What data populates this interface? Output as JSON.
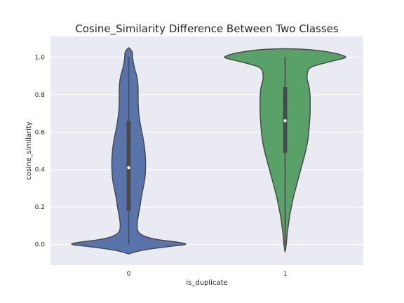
{
  "chart_data": {
    "type": "violin",
    "title": "Cosine_Similarity Difference Between Two Classes",
    "xlabel": "is_duplicate",
    "ylabel": "cosine_similarity",
    "ylim": [
      -0.11,
      1.11
    ],
    "yticks": [
      0.0,
      0.2,
      0.4,
      0.6,
      0.8,
      1.0
    ],
    "ytick_labels": [
      "0.0",
      "0.2",
      "0.4",
      "0.6",
      "0.8",
      "1.0"
    ],
    "categories": [
      "0",
      "1"
    ],
    "grid": true,
    "colors": {
      "background": "#eaeaf2",
      "grid": "#ffffff",
      "outline": "#4a4a4a",
      "box": "#4a4a4a",
      "median": "#ffffff"
    },
    "violins": [
      {
        "category": "0",
        "color": "#5874aa",
        "median": 0.41,
        "q1": 0.18,
        "q3": 0.66,
        "whisker_low": 0.0,
        "whisker_high": 1.0,
        "profile": [
          [
            -0.05,
            0.0
          ],
          [
            -0.03,
            0.2
          ],
          [
            -0.01,
            0.65
          ],
          [
            0.0,
            0.95
          ],
          [
            0.01,
            0.85
          ],
          [
            0.03,
            0.35
          ],
          [
            0.06,
            0.15
          ],
          [
            0.1,
            0.13
          ],
          [
            0.15,
            0.15
          ],
          [
            0.2,
            0.18
          ],
          [
            0.25,
            0.2
          ],
          [
            0.3,
            0.23
          ],
          [
            0.35,
            0.26
          ],
          [
            0.4,
            0.27
          ],
          [
            0.45,
            0.27
          ],
          [
            0.5,
            0.26
          ],
          [
            0.55,
            0.24
          ],
          [
            0.6,
            0.21
          ],
          [
            0.65,
            0.18
          ],
          [
            0.7,
            0.16
          ],
          [
            0.75,
            0.15
          ],
          [
            0.8,
            0.15
          ],
          [
            0.85,
            0.15
          ],
          [
            0.9,
            0.13
          ],
          [
            0.93,
            0.1
          ],
          [
            0.96,
            0.08
          ],
          [
            1.0,
            0.06
          ],
          [
            1.03,
            0.06
          ],
          [
            1.05,
            0.0
          ]
        ]
      },
      {
        "category": "1",
        "color": "#58a168",
        "median": 0.66,
        "q1": 0.49,
        "q3": 0.84,
        "whisker_low": 0.0,
        "whisker_high": 1.0,
        "profile": [
          [
            -0.04,
            0.0
          ],
          [
            0.0,
            0.02
          ],
          [
            0.05,
            0.03
          ],
          [
            0.1,
            0.05
          ],
          [
            0.15,
            0.07
          ],
          [
            0.2,
            0.1
          ],
          [
            0.25,
            0.13
          ],
          [
            0.3,
            0.17
          ],
          [
            0.35,
            0.21
          ],
          [
            0.4,
            0.25
          ],
          [
            0.45,
            0.29
          ],
          [
            0.5,
            0.33
          ],
          [
            0.55,
            0.36
          ],
          [
            0.6,
            0.38
          ],
          [
            0.65,
            0.39
          ],
          [
            0.7,
            0.4
          ],
          [
            0.75,
            0.4
          ],
          [
            0.8,
            0.4
          ],
          [
            0.85,
            0.38
          ],
          [
            0.88,
            0.35
          ],
          [
            0.9,
            0.35
          ],
          [
            0.93,
            0.36
          ],
          [
            0.95,
            0.42
          ],
          [
            0.97,
            0.65
          ],
          [
            0.99,
            0.9
          ],
          [
            1.0,
            1.0
          ],
          [
            1.02,
            0.82
          ],
          [
            1.04,
            0.45
          ],
          [
            1.045,
            0.0
          ]
        ]
      }
    ]
  }
}
